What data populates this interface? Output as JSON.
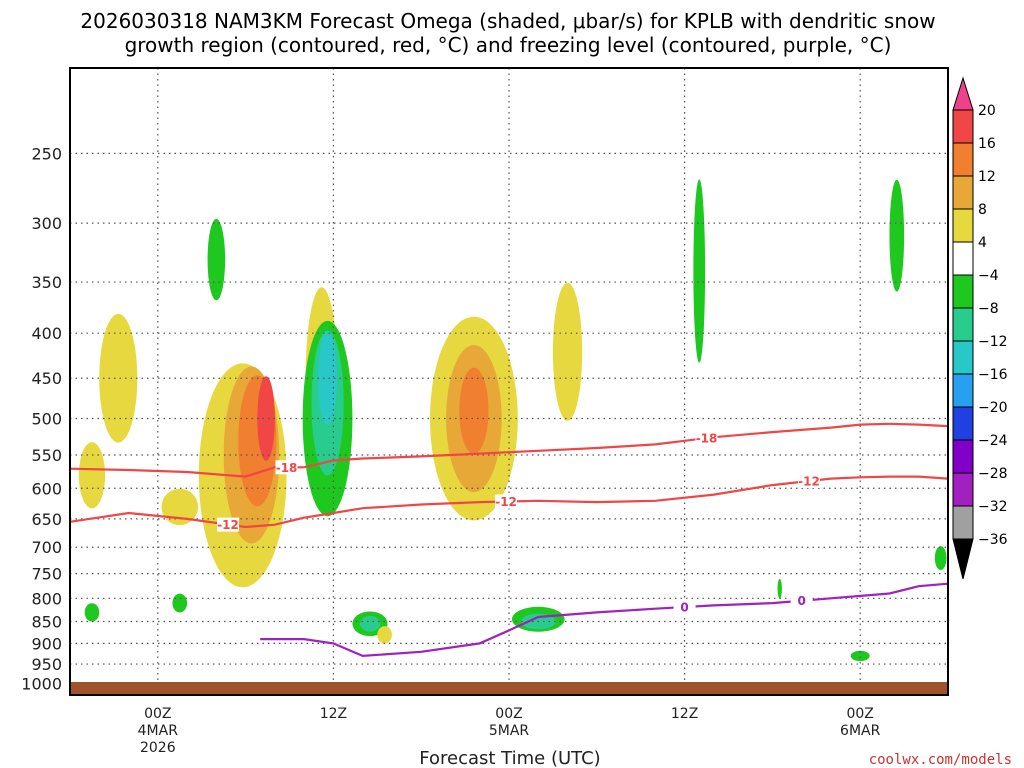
{
  "chart_data": {
    "type": "heatmap",
    "title_line1": "2026030318 NAM3KM Forecast Omega (shaded, μbar/s) for KPLB with dendritic snow",
    "title_line2": "growth region (contoured, red, °C) and freezing level (contoured, purple, °C)",
    "xlabel": "Forecast Time (UTC)",
    "credit": "coolwx.com/models",
    "x_ticks": [
      {
        "hour": 6,
        "lines": [
          "00Z",
          "4MAR",
          "2026"
        ]
      },
      {
        "hour": 18,
        "lines": [
          "12Z"
        ]
      },
      {
        "hour": 30,
        "lines": [
          "00Z",
          "5MAR"
        ]
      },
      {
        "hour": 42,
        "lines": [
          "12Z"
        ]
      },
      {
        "hour": 54,
        "lines": [
          "00Z",
          "6MAR"
        ]
      }
    ],
    "x_range_hours": [
      0,
      60
    ],
    "y_ticks": [
      "250",
      "300",
      "350",
      "400",
      "450",
      "500",
      "550",
      "600",
      "650",
      "700",
      "750",
      "800",
      "850",
      "900",
      "950",
      "1000"
    ],
    "y_range_hpa": [
      200,
      1030
    ],
    "colorbar": {
      "labels": [
        "20",
        "16",
        "12",
        "8",
        "4",
        "−4",
        "−8",
        "−12",
        "−16",
        "−20",
        "−24",
        "−28",
        "−32",
        "−36"
      ],
      "colors": [
        "#f0408a",
        "#f04646",
        "#f08030",
        "#e8a838",
        "#e8d840",
        "#ffffff",
        "#1ec81e",
        "#28cc8c",
        "#28c8c8",
        "#28a0f0",
        "#2040e0",
        "#8000c8",
        "#a020c0",
        "#a0a0a0",
        "#000000"
      ]
    },
    "contour_labels": {
      "dgz_top": "-18",
      "dgz_bottom": "-12",
      "freezing": "0"
    },
    "dgz_top_hpa": [
      [
        0,
        570
      ],
      [
        4,
        572
      ],
      [
        8,
        575
      ],
      [
        12,
        582
      ],
      [
        14,
        568
      ],
      [
        16,
        568
      ],
      [
        18,
        558
      ],
      [
        20,
        555
      ],
      [
        24,
        552
      ],
      [
        28,
        548
      ],
      [
        32,
        544
      ],
      [
        36,
        540
      ],
      [
        40,
        535
      ],
      [
        42,
        530
      ],
      [
        44,
        525
      ],
      [
        48,
        518
      ],
      [
        52,
        512
      ],
      [
        54,
        508
      ],
      [
        56,
        507
      ],
      [
        58,
        508
      ],
      [
        60,
        510
      ]
    ],
    "dgz_bottom_hpa": [
      [
        0,
        655
      ],
      [
        4,
        640
      ],
      [
        8,
        650
      ],
      [
        12,
        664
      ],
      [
        14,
        660
      ],
      [
        16,
        648
      ],
      [
        18,
        640
      ],
      [
        20,
        632
      ],
      [
        24,
        626
      ],
      [
        28,
        622
      ],
      [
        32,
        620
      ],
      [
        36,
        622
      ],
      [
        40,
        620
      ],
      [
        44,
        610
      ],
      [
        48,
        595
      ],
      [
        52,
        585
      ],
      [
        54,
        583
      ],
      [
        56,
        582
      ],
      [
        58,
        582
      ],
      [
        60,
        585
      ]
    ],
    "freezing_hpa": [
      [
        13,
        890
      ],
      [
        16,
        890
      ],
      [
        18,
        900
      ],
      [
        20,
        930
      ],
      [
        24,
        920
      ],
      [
        28,
        900
      ],
      [
        30,
        870
      ],
      [
        32,
        840
      ],
      [
        36,
        830
      ],
      [
        40,
        822
      ],
      [
        44,
        815
      ],
      [
        48,
        810
      ],
      [
        52,
        800
      ],
      [
        56,
        790
      ],
      [
        58,
        775
      ],
      [
        60,
        770
      ]
    ],
    "omega_cells": [
      {
        "t": 3.3,
        "p": 450,
        "dt": 2.6,
        "dp": 150,
        "omega": 5
      },
      {
        "t": 1.5,
        "p": 580,
        "dt": 1.8,
        "dp": 100,
        "omega": 5
      },
      {
        "t": 7.5,
        "p": 630,
        "dt": 2.5,
        "dp": 60,
        "omega": 5
      },
      {
        "t": 11.8,
        "p": 580,
        "dt": 6.0,
        "dp": 330,
        "omega": 5
      },
      {
        "t": 12.4,
        "p": 550,
        "dt": 3.8,
        "dp": 250,
        "omega": 9
      },
      {
        "t": 12.8,
        "p": 530,
        "dt": 2.6,
        "dp": 180,
        "omega": 12
      },
      {
        "t": 13.4,
        "p": 500,
        "dt": 1.2,
        "dp": 110,
        "omega": 17
      },
      {
        "t": 17.2,
        "p": 450,
        "dt": 2.2,
        "dp": 210,
        "omega": 5
      },
      {
        "t": 10.0,
        "p": 330,
        "dt": 1.2,
        "dp": 70,
        "omega": -5
      },
      {
        "t": 17.6,
        "p": 500,
        "dt": 3.4,
        "dp": 250,
        "omega": -6
      },
      {
        "t": 17.6,
        "p": 480,
        "dt": 2.2,
        "dp": 180,
        "omega": -10
      },
      {
        "t": 17.6,
        "p": 450,
        "dt": 1.3,
        "dp": 110,
        "omega": -14
      },
      {
        "t": 27.6,
        "p": 500,
        "dt": 6.0,
        "dp": 260,
        "omega": 5
      },
      {
        "t": 27.6,
        "p": 500,
        "dt": 3.8,
        "dp": 190,
        "omega": 8
      },
      {
        "t": 27.6,
        "p": 490,
        "dt": 2.0,
        "dp": 110,
        "omega": 12
      },
      {
        "t": 34.0,
        "p": 420,
        "dt": 2.0,
        "dp": 150,
        "omega": 5
      },
      {
        "t": 43.0,
        "p": 340,
        "dt": 0.8,
        "dp": 160,
        "omega": -5
      },
      {
        "t": 56.5,
        "p": 310,
        "dt": 1.0,
        "dp": 90,
        "omega": -6
      },
      {
        "t": 20.5,
        "p": 855,
        "dt": 2.4,
        "dp": 55,
        "omega": -6
      },
      {
        "t": 20.5,
        "p": 855,
        "dt": 1.4,
        "dp": 35,
        "omega": -10
      },
      {
        "t": 32.0,
        "p": 845,
        "dt": 3.6,
        "dp": 55,
        "omega": -6
      },
      {
        "t": 32.0,
        "p": 850,
        "dt": 2.4,
        "dp": 35,
        "omega": -10
      },
      {
        "t": 1.5,
        "p": 830,
        "dt": 1.0,
        "dp": 40,
        "omega": -5
      },
      {
        "t": 7.5,
        "p": 810,
        "dt": 1.0,
        "dp": 40,
        "omega": -5
      },
      {
        "t": 59.5,
        "p": 720,
        "dt": 0.8,
        "dp": 45,
        "omega": -6
      },
      {
        "t": 48.5,
        "p": 780,
        "dt": 0.3,
        "dp": 40,
        "omega": -5
      },
      {
        "t": 21.5,
        "p": 880,
        "dt": 1.0,
        "dp": 40,
        "omega": 5
      },
      {
        "t": 54.0,
        "p": 930,
        "dt": 1.3,
        "dp": 25,
        "omega": -5
      }
    ]
  }
}
